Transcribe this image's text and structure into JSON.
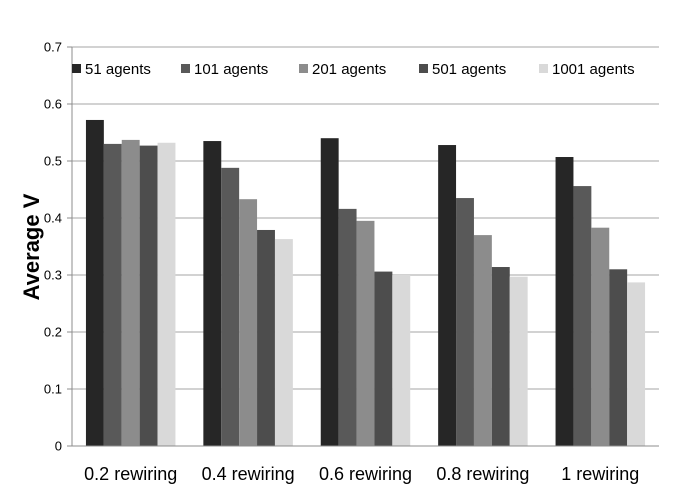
{
  "chart_data": {
    "type": "bar",
    "title": "",
    "xlabel": "",
    "ylabel": "Average V",
    "ylim": [
      0,
      0.7
    ],
    "yticks": [
      "0",
      "0.1",
      "0.2",
      "0.3",
      "0.4",
      "0.5",
      "0.6",
      "0.7"
    ],
    "grid": true,
    "legend_position": "top",
    "categories": [
      "0.2 rewiring",
      "0.4 rewiring",
      "0.6 rewiring",
      "0.8 rewiring",
      "1 rewiring"
    ],
    "series": [
      {
        "name": "51 agents",
        "color": "#262626",
        "values": [
          0.572,
          0.535,
          0.54,
          0.528,
          0.507
        ]
      },
      {
        "name": "101 agents",
        "color": "#595959",
        "values": [
          0.53,
          0.488,
          0.416,
          0.435,
          0.456
        ]
      },
      {
        "name": "201 agents",
        "color": "#8c8c8c",
        "values": [
          0.537,
          0.433,
          0.395,
          0.37,
          0.383
        ]
      },
      {
        "name": "501 agents",
        "color": "#4d4d4d",
        "values": [
          0.527,
          0.379,
          0.306,
          0.314,
          0.31
        ]
      },
      {
        "name": "1001 agents",
        "color": "#d9d9d9",
        "values": [
          0.532,
          0.363,
          0.3,
          0.297,
          0.287
        ]
      }
    ]
  }
}
